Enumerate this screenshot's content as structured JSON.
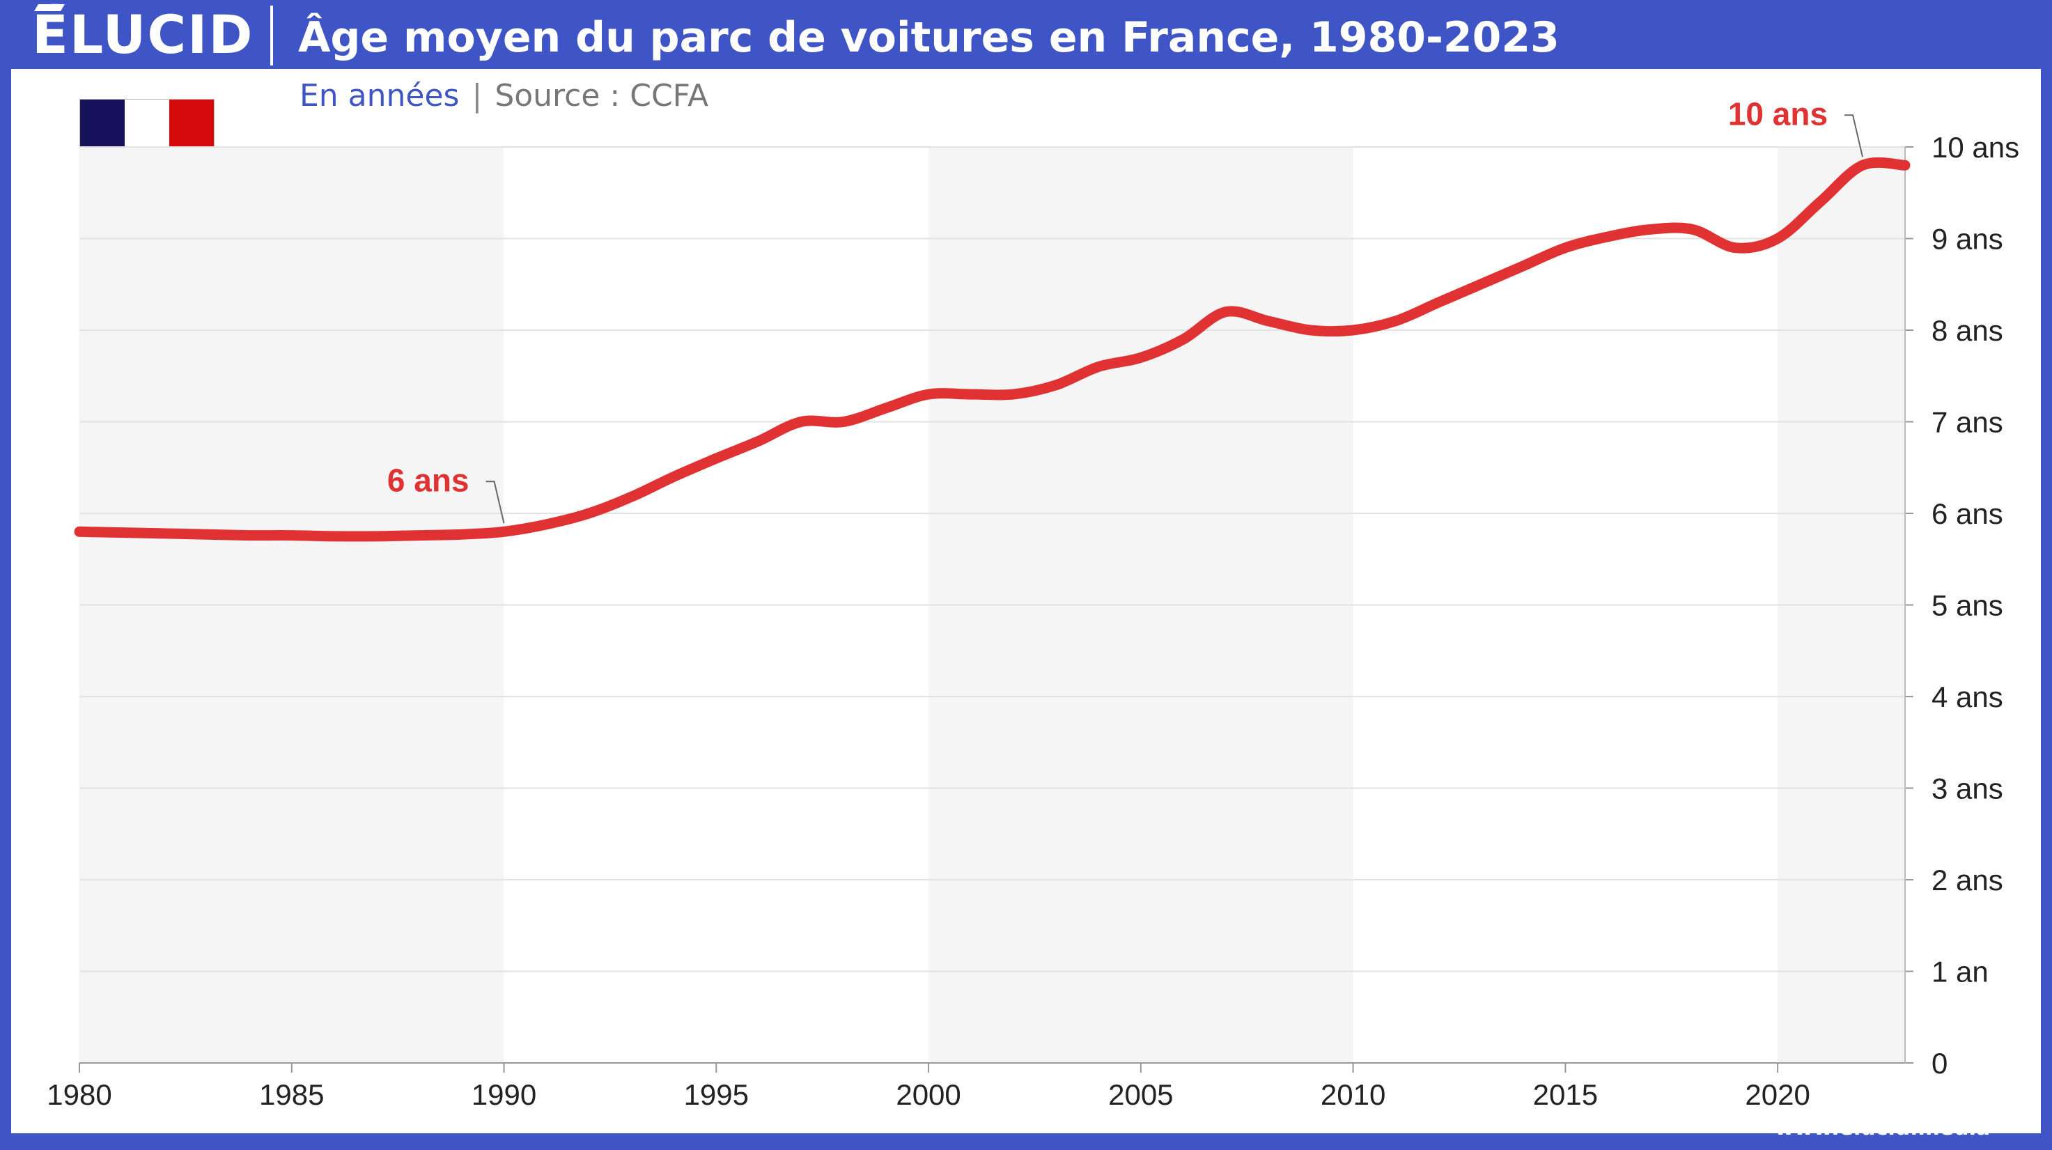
{
  "header": {
    "logo": "ÉLUCID",
    "title": "Âge moyen du parc de voitures en France, 1980-2023"
  },
  "subtitle": {
    "unit": "En années",
    "separator": "|",
    "source": "Source : CCFA"
  },
  "flag": {
    "name": "france-flag",
    "colors": [
      "#16135c",
      "#ffffff",
      "#d60a0a"
    ]
  },
  "footer": {
    "url": "www.elucid.media"
  },
  "colors": {
    "brand": "#3f55c6",
    "line": "#e03232",
    "band": "#f5f5f5",
    "grid": "#e2e2e2",
    "axis_text": "#222222"
  },
  "chart_data": {
    "type": "line",
    "title": "Âge moyen du parc de voitures en France, 1980-2023",
    "ylabel": "En années",
    "xlim": [
      1980,
      2023
    ],
    "ylim": [
      0,
      10
    ],
    "x_ticks": [
      "1980",
      "1985",
      "1990",
      "1995",
      "2000",
      "2005",
      "2010",
      "2015",
      "2020"
    ],
    "y_ticks": [
      "0",
      "1 an",
      "2 ans",
      "3 ans",
      "4 ans",
      "5 ans",
      "6 ans",
      "7 ans",
      "8 ans",
      "9 ans",
      "10 ans"
    ],
    "grid": true,
    "shaded_periods": [
      [
        1980,
        1990
      ],
      [
        2000,
        2010
      ],
      [
        2020,
        2023
      ]
    ],
    "series": [
      {
        "x": [
          1980,
          1981,
          1982,
          1983,
          1984,
          1985,
          1986,
          1987,
          1988,
          1989,
          1990,
          1991,
          1992,
          1993,
          1994,
          1995,
          1996,
          1997,
          1998,
          1999,
          2000,
          2001,
          2002,
          2003,
          2004,
          2005,
          2006,
          2007,
          2008,
          2009,
          2010,
          2011,
          2012,
          2013,
          2014,
          2015,
          2016,
          2017,
          2018,
          2019,
          2020,
          2021,
          2022,
          2023
        ],
        "values": [
          5.8,
          5.79,
          5.78,
          5.77,
          5.76,
          5.76,
          5.75,
          5.75,
          5.76,
          5.77,
          5.8,
          5.88,
          6.0,
          6.18,
          6.4,
          6.6,
          6.79,
          7.0,
          7.0,
          7.15,
          7.3,
          7.3,
          7.3,
          7.4,
          7.6,
          7.7,
          7.9,
          8.2,
          8.1,
          8.0,
          8.0,
          8.1,
          8.3,
          8.5,
          8.7,
          8.9,
          9.02,
          9.1,
          9.1,
          8.9,
          9.0,
          9.4,
          9.8,
          9.8
        ]
      }
    ],
    "annotations": [
      {
        "label": "6 ans",
        "x": 1990,
        "y": 5.8
      },
      {
        "label": "10 ans",
        "x": 2022,
        "y": 9.8
      }
    ]
  }
}
